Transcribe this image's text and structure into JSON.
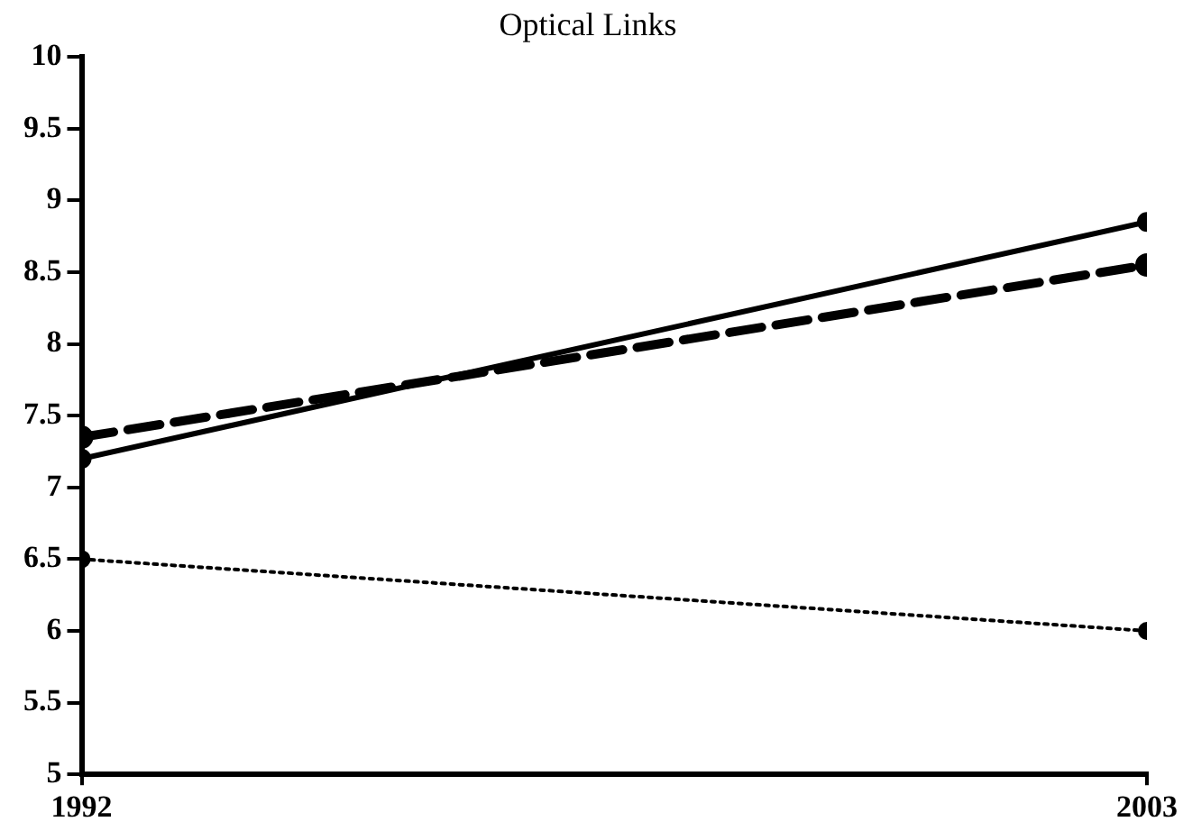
{
  "chart_data": {
    "type": "line",
    "title": "Optical Links",
    "x": [
      1992,
      2003
    ],
    "series": [
      {
        "color": "#000000",
        "values": [
          7.2,
          8.85
        ],
        "line_style": "solid"
      },
      {
        "color": "#000000",
        "values": [
          7.35,
          8.55
        ],
        "line_style": "dashed"
      },
      {
        "color": "#000000",
        "values": [
          6.5,
          6.0
        ],
        "line_style": "dotted"
      }
    ],
    "xlim": [
      1992,
      2003
    ],
    "xticks": [
      1992,
      2003
    ],
    "ylim": [
      5,
      10
    ],
    "yticks": [
      5,
      5.5,
      6,
      6.5,
      7,
      7.5,
      8,
      8.5,
      9,
      9.5,
      10
    ],
    "grid": false,
    "legend": false,
    "marker": "circle"
  }
}
